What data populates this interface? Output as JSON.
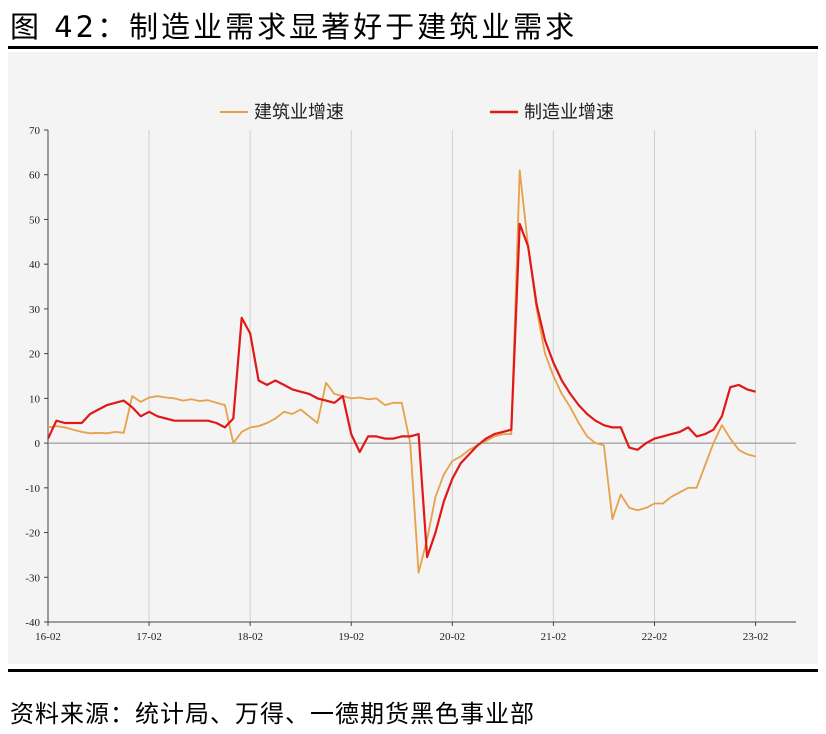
{
  "figure": {
    "title": "图 42：制造业需求显著好于建筑业需求",
    "source": "资料来源：统计局、万得、一德期货黑色事业部"
  },
  "chart_data": {
    "type": "line",
    "title": "",
    "xlabel": "",
    "ylabel": "",
    "ylim": [
      -40,
      70
    ],
    "yticks": [
      -40,
      -30,
      -20,
      -10,
      0,
      10,
      20,
      30,
      40,
      50,
      60,
      70
    ],
    "xticks": [
      "16-02",
      "17-02",
      "18-02",
      "19-02",
      "20-02",
      "21-02",
      "22-02",
      "23-02"
    ],
    "grid": "vertical",
    "legend": "top",
    "series": [
      {
        "name": "建筑业增速",
        "color": "#e8a04a",
        "points": [
          [
            0,
            3.5
          ],
          [
            1,
            3.8
          ],
          [
            2,
            3.5
          ],
          [
            3,
            3.0
          ],
          [
            4,
            2.5
          ],
          [
            5,
            2.2
          ],
          [
            6,
            2.3
          ],
          [
            7,
            2.2
          ],
          [
            8,
            2.5
          ],
          [
            9,
            2.3
          ],
          [
            10,
            10.5
          ],
          [
            11,
            9.2
          ],
          [
            12,
            10.2
          ],
          [
            13,
            10.5
          ],
          [
            14,
            10.2
          ],
          [
            15,
            10.0
          ],
          [
            16,
            9.5
          ],
          [
            17,
            9.8
          ],
          [
            18,
            9.4
          ],
          [
            19,
            9.6
          ],
          [
            20,
            9.0
          ],
          [
            21,
            8.5
          ],
          [
            22,
            0.0
          ],
          [
            23,
            2.5
          ],
          [
            24,
            3.5
          ],
          [
            25,
            3.8
          ],
          [
            26,
            4.5
          ],
          [
            27,
            5.5
          ],
          [
            28,
            7.0
          ],
          [
            29,
            6.5
          ],
          [
            30,
            7.5
          ],
          [
            31,
            6.0
          ],
          [
            32,
            4.5
          ],
          [
            33,
            13.5
          ],
          [
            34,
            11.0
          ],
          [
            35,
            10.5
          ],
          [
            36,
            10.0
          ],
          [
            37,
            10.2
          ],
          [
            38,
            9.8
          ],
          [
            39,
            10.0
          ],
          [
            40,
            8.5
          ],
          [
            41,
            9.0
          ],
          [
            42,
            9.0
          ],
          [
            43,
            0.0
          ],
          [
            44,
            -29.0
          ],
          [
            45,
            -21.5
          ],
          [
            46,
            -12.0
          ],
          [
            47,
            -7.0
          ],
          [
            48,
            -4.0
          ],
          [
            49,
            -3.0
          ],
          [
            50,
            -1.5
          ],
          [
            51,
            -0.5
          ],
          [
            52,
            0.5
          ],
          [
            53,
            1.5
          ],
          [
            54,
            2.0
          ],
          [
            55,
            2.0
          ],
          [
            56,
            61.0
          ],
          [
            57,
            44.0
          ],
          [
            58,
            30.0
          ],
          [
            59,
            20.0
          ],
          [
            60,
            15.0
          ],
          [
            61,
            11.0
          ],
          [
            62,
            8.0
          ],
          [
            63,
            4.5
          ],
          [
            64,
            1.5
          ],
          [
            65,
            0.0
          ],
          [
            66,
            -0.5
          ],
          [
            67,
            -17.0
          ],
          [
            68,
            -11.5
          ],
          [
            69,
            -14.5
          ],
          [
            70,
            -15.0
          ],
          [
            71,
            -14.5
          ],
          [
            72,
            -13.5
          ],
          [
            73,
            -13.5
          ],
          [
            74,
            -12.0
          ],
          [
            75,
            -11.0
          ],
          [
            76,
            -10.0
          ],
          [
            77,
            -10.0
          ],
          [
            78,
            -5.0
          ],
          [
            79,
            0.0
          ],
          [
            80,
            4.0
          ],
          [
            81,
            1.0
          ],
          [
            82,
            -1.5
          ],
          [
            83,
            -2.5
          ],
          [
            84,
            -3.0
          ]
        ]
      },
      {
        "name": "制造业增速",
        "color": "#e01818",
        "points": [
          [
            0,
            1.0
          ],
          [
            1,
            5.0
          ],
          [
            2,
            4.5
          ],
          [
            3,
            4.5
          ],
          [
            4,
            4.5
          ],
          [
            5,
            6.5
          ],
          [
            6,
            7.5
          ],
          [
            7,
            8.5
          ],
          [
            8,
            9.0
          ],
          [
            9,
            9.5
          ],
          [
            10,
            8.0
          ],
          [
            11,
            6.0
          ],
          [
            12,
            7.0
          ],
          [
            13,
            6.0
          ],
          [
            14,
            5.5
          ],
          [
            15,
            5.0
          ],
          [
            16,
            5.0
          ],
          [
            17,
            5.0
          ],
          [
            18,
            5.0
          ],
          [
            19,
            5.0
          ],
          [
            20,
            4.5
          ],
          [
            21,
            3.5
          ],
          [
            22,
            5.5
          ],
          [
            23,
            28.0
          ],
          [
            24,
            24.5
          ],
          [
            25,
            14.0
          ],
          [
            26,
            13.0
          ],
          [
            27,
            14.0
          ],
          [
            28,
            13.0
          ],
          [
            29,
            12.0
          ],
          [
            30,
            11.5
          ],
          [
            31,
            11.0
          ],
          [
            32,
            10.0
          ],
          [
            33,
            9.5
          ],
          [
            34,
            9.0
          ],
          [
            35,
            10.5
          ],
          [
            36,
            2.0
          ],
          [
            37,
            -2.0
          ],
          [
            38,
            1.5
          ],
          [
            39,
            1.5
          ],
          [
            40,
            1.0
          ],
          [
            41,
            1.0
          ],
          [
            42,
            1.5
          ],
          [
            43,
            1.5
          ],
          [
            44,
            2.0
          ],
          [
            45,
            -25.5
          ],
          [
            46,
            -20.0
          ],
          [
            47,
            -13.0
          ],
          [
            48,
            -8.0
          ],
          [
            49,
            -4.5
          ],
          [
            50,
            -2.5
          ],
          [
            51,
            -0.5
          ],
          [
            52,
            1.0
          ],
          [
            53,
            2.0
          ],
          [
            54,
            2.5
          ],
          [
            55,
            3.0
          ],
          [
            56,
            49.0
          ],
          [
            57,
            44.0
          ],
          [
            58,
            31.0
          ],
          [
            59,
            23.0
          ],
          [
            60,
            18.0
          ],
          [
            61,
            14.0
          ],
          [
            62,
            11.0
          ],
          [
            63,
            8.5
          ],
          [
            64,
            6.5
          ],
          [
            65,
            5.0
          ],
          [
            66,
            4.0
          ],
          [
            67,
            3.5
          ],
          [
            68,
            3.5
          ],
          [
            69,
            -1.0
          ],
          [
            70,
            -1.5
          ],
          [
            71,
            0.0
          ],
          [
            72,
            1.0
          ],
          [
            73,
            1.5
          ],
          [
            74,
            2.0
          ],
          [
            75,
            2.5
          ],
          [
            76,
            3.5
          ],
          [
            77,
            1.5
          ],
          [
            78,
            2.0
          ],
          [
            79,
            3.0
          ],
          [
            80,
            6.0
          ],
          [
            81,
            12.5
          ],
          [
            82,
            13.0
          ],
          [
            83,
            12.0
          ],
          [
            84,
            11.5
          ]
        ]
      }
    ]
  }
}
